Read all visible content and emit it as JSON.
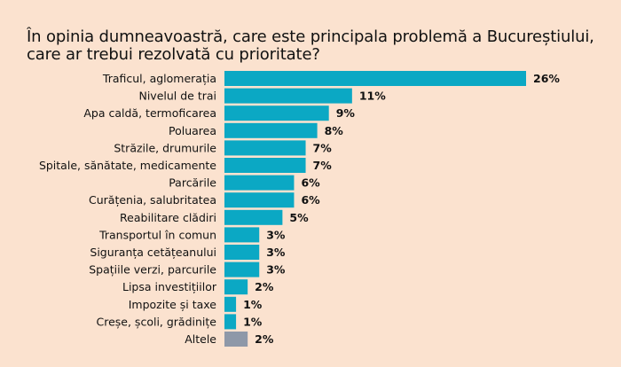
{
  "chart_data": {
    "type": "bar",
    "orientation": "horizontal",
    "title": "În opinia dumneavoastră, care este principala problemă a Bucureștiului, care ar trebui rezolvată cu prioritate?",
    "xlabel": "",
    "ylabel": "",
    "categories": [
      "Traficul, aglomerația",
      "Nivelul de trai",
      "Apa caldă, termoficarea",
      "Poluarea",
      "Străzile, drumurile",
      "Spitale, sănătate, medicamente",
      "Parcările",
      "Curățenia, salubritatea",
      "Reabilitare clădiri",
      "Transportul în comun",
      "Siguranța cetățeanului",
      "Spațiile verzi, parcurile",
      "Lipsa investițiilor",
      "Impozite și taxe",
      "Creșe, școli, grădinițe",
      "Altele"
    ],
    "values": [
      26,
      11,
      9,
      8,
      7,
      7,
      6,
      6,
      5,
      3,
      3,
      3,
      2,
      1,
      1,
      2
    ],
    "value_labels": [
      "26%",
      "11%",
      "9%",
      "8%",
      "7%",
      "7%",
      "6%",
      "6%",
      "5%",
      "3%",
      "3%",
      "3%",
      "2%",
      "1%",
      "1%",
      "2%"
    ],
    "xlim": [
      0,
      26
    ],
    "grid": false,
    "legend": "none",
    "colors": {
      "bar": "#0ba8c4",
      "bar_other": "#8e98a8",
      "background": "#fbe2cf"
    }
  }
}
